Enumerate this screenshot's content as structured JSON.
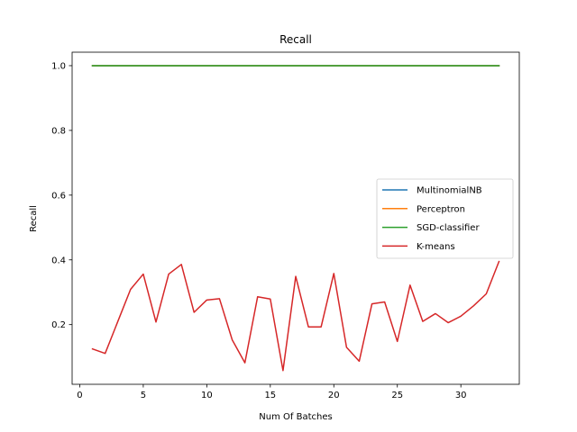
{
  "chart_data": {
    "type": "line",
    "title": "Recall",
    "xlabel": "Num Of Batches",
    "ylabel": "Recall",
    "xlim": [
      -0.6,
      34.6
    ],
    "ylim": [
      0.0156,
      1.0416
    ],
    "xticks": [
      0,
      5,
      10,
      15,
      20,
      25,
      30
    ],
    "xtick_labels": [
      "0",
      "5",
      "10",
      "15",
      "20",
      "25",
      "30"
    ],
    "yticks": [
      0.2,
      0.4,
      0.6,
      0.8,
      1.0
    ],
    "ytick_labels": [
      "0.2",
      "0.4",
      "0.6",
      "0.8",
      "1.0"
    ],
    "grid": false,
    "legend_position": "center-right",
    "x": [
      1,
      2,
      3,
      4,
      5,
      6,
      7,
      8,
      9,
      10,
      11,
      12,
      13,
      14,
      15,
      16,
      17,
      18,
      19,
      20,
      21,
      22,
      23,
      24,
      25,
      26,
      27,
      28,
      29,
      30,
      31,
      32,
      33
    ],
    "series": [
      {
        "name": "MultinomialNB",
        "color": "#1f77b4",
        "values": [
          1,
          1,
          1,
          1,
          1,
          1,
          1,
          1,
          1,
          1,
          1,
          1,
          1,
          1,
          1,
          1,
          1,
          1,
          1,
          1,
          1,
          1,
          1,
          1,
          1,
          1,
          1,
          1,
          1,
          1,
          1,
          1,
          1
        ]
      },
      {
        "name": "Perceptron",
        "color": "#ff7f0e",
        "values": [
          1,
          1,
          1,
          1,
          1,
          1,
          1,
          1,
          1,
          1,
          1,
          1,
          1,
          1,
          1,
          1,
          1,
          1,
          1,
          1,
          1,
          1,
          1,
          1,
          1,
          1,
          1,
          1,
          1,
          1,
          1,
          1,
          1
        ]
      },
      {
        "name": "SGD-classifier",
        "color": "#2ca02c",
        "values": [
          1,
          1,
          1,
          1,
          1,
          1,
          1,
          1,
          1,
          1,
          1,
          1,
          1,
          1,
          1,
          1,
          1,
          1,
          1,
          1,
          1,
          1,
          1,
          1,
          1,
          1,
          1,
          1,
          1,
          1,
          1,
          1,
          1
        ]
      },
      {
        "name": "K-means",
        "color": "#d62728",
        "values": [
          0.125,
          0.111,
          0.21,
          0.309,
          0.356,
          0.208,
          0.356,
          0.386,
          0.238,
          0.276,
          0.28,
          0.153,
          0.082,
          0.286,
          0.279,
          0.058,
          0.349,
          0.193,
          0.193,
          0.358,
          0.13,
          0.087,
          0.264,
          0.27,
          0.148,
          0.322,
          0.21,
          0.234,
          0.206,
          0.226,
          0.258,
          0.295,
          0.395
        ]
      }
    ]
  }
}
